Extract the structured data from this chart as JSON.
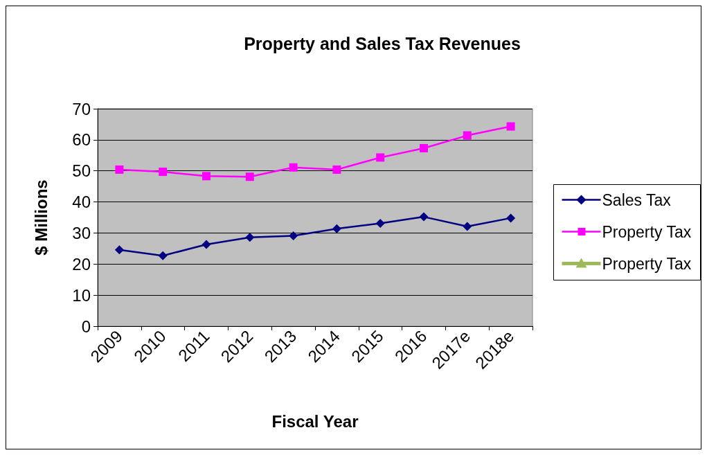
{
  "chart_data": {
    "type": "line",
    "title": "Property and Sales Tax Revenues",
    "xlabel": "Fiscal Year",
    "ylabel": "$ Millions",
    "categories": [
      "2009",
      "2010",
      "2011",
      "2012",
      "2013",
      "2014",
      "2015",
      "2016",
      "2017e",
      "2018e"
    ],
    "series": [
      {
        "name": "Sales Tax",
        "color": "#000080",
        "marker": "diamond",
        "values": [
          24.6,
          22.7,
          26.3,
          28.6,
          29.1,
          31.4,
          33.1,
          35.2,
          32.1,
          34.8
        ]
      },
      {
        "name": "Property Tax",
        "color": "#ff00ff",
        "marker": "square",
        "values": [
          50.4,
          49.7,
          48.3,
          48.1,
          51.1,
          50.4,
          54.3,
          57.3,
          61.4,
          64.3
        ]
      },
      {
        "name": "Property Tax",
        "color": "#9bbb59",
        "marker": "triangle",
        "values": [
          null,
          null,
          null,
          null,
          null,
          null,
          null,
          null,
          null,
          null
        ]
      }
    ],
    "ylim": [
      0,
      70
    ],
    "yticks": [
      0,
      10,
      20,
      30,
      40,
      50,
      60,
      70
    ],
    "grid": "y",
    "legend": "right"
  }
}
